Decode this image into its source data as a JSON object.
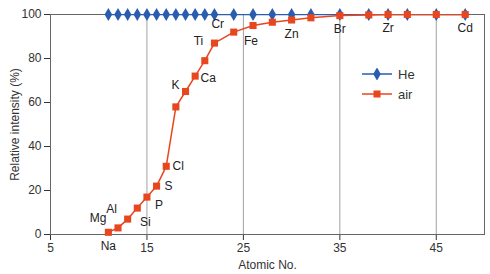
{
  "chart_data": {
    "type": "line",
    "x_label": "Atomic No.",
    "y_label": "Relative intensity (%)",
    "x": [
      11,
      12,
      13,
      14,
      15,
      16,
      17,
      18,
      19,
      20,
      21,
      22,
      24,
      26,
      28,
      30,
      32,
      35,
      38,
      40,
      42,
      45,
      48
    ],
    "series": [
      {
        "name": "He",
        "color": "#2a5db0",
        "marker": "diamond",
        "values": [
          100,
          100,
          100,
          100,
          100,
          100,
          100,
          100,
          100,
          100,
          100,
          100,
          100,
          100,
          100,
          100,
          100,
          100,
          100,
          100,
          100,
          100,
          100
        ]
      },
      {
        "name": "air",
        "color": "#e8461e",
        "marker": "square",
        "values": [
          1,
          3,
          7,
          12,
          17,
          22,
          31,
          58,
          65,
          72,
          79,
          87,
          92,
          95,
          96.5,
          97.5,
          98.5,
          99.5,
          99.8,
          100,
          100,
          100,
          100
        ]
      }
    ],
    "annotations": [
      {
        "text": "Na",
        "x": 11,
        "y": 1
      },
      {
        "text": "Mg",
        "x": 12,
        "y": 3
      },
      {
        "text": "Al",
        "x": 13,
        "y": 7
      },
      {
        "text": "Si",
        "x": 14,
        "y": 12
      },
      {
        "text": "P",
        "x": 15,
        "y": 17
      },
      {
        "text": "S",
        "x": 16,
        "y": 22
      },
      {
        "text": "Cl",
        "x": 17,
        "y": 31
      },
      {
        "text": "K",
        "x": 19,
        "y": 65
      },
      {
        "text": "Ca",
        "x": 20,
        "y": 72
      },
      {
        "text": "Ti",
        "x": 22,
        "y": 87
      },
      {
        "text": "Cr",
        "x": 24,
        "y": 92
      },
      {
        "text": "Fe",
        "x": 26,
        "y": 95
      },
      {
        "text": "Zn",
        "x": 30,
        "y": 97.5
      },
      {
        "text": "Br",
        "x": 35,
        "y": 99.5
      },
      {
        "text": "Zr",
        "x": 40,
        "y": 100
      },
      {
        "text": "Cd",
        "x": 48,
        "y": 100
      }
    ],
    "xlim": [
      5,
      50
    ],
    "xticks": [
      5,
      15,
      25,
      35,
      45
    ],
    "ylim": [
      0,
      100
    ],
    "yticks": [
      0,
      20,
      40,
      60,
      80,
      100
    ],
    "grid": "x",
    "legend": "right"
  }
}
